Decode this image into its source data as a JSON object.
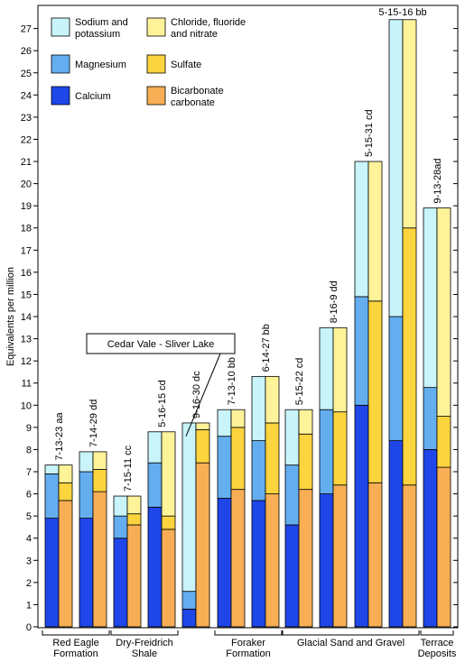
{
  "chart_data": {
    "type": "bar",
    "stacked": true,
    "ylabel": "Equivalents per million",
    "ylim": [
      0,
      28
    ],
    "yticks": [
      0,
      1,
      2,
      3,
      4,
      5,
      6,
      7,
      8,
      9,
      10,
      11,
      12,
      13,
      14,
      15,
      16,
      17,
      18,
      19,
      20,
      21,
      22,
      23,
      24,
      25,
      26,
      27
    ],
    "legend": {
      "placement": "top-left",
      "entries": [
        {
          "label": "Sodium and potassium",
          "lines": [
            "Sodium and",
            "potassium"
          ],
          "color": "#c8f4fa"
        },
        {
          "label": "Chloride, fluoride and nitrate",
          "lines": [
            "Chloride, fluoride",
            "and nitrate"
          ],
          "color": "#fff39a"
        },
        {
          "label": "Magnesium",
          "lines": [
            "Magnesium"
          ],
          "color": "#64aef0"
        },
        {
          "label": "Sulfate",
          "lines": [
            "Sulfate"
          ],
          "color": "#fcd43e"
        },
        {
          "label": "Calcium",
          "lines": [
            "Calcium"
          ],
          "color": "#1f46e8"
        },
        {
          "label": "Bicarbonate carbonate",
          "lines": [
            "Bicarbonate",
            "carbonate"
          ],
          "color": "#f7ae55"
        }
      ]
    },
    "cation_colors": {
      "calcium": "#1f46e8",
      "magnesium": "#64aef0",
      "sodium_potassium": "#c8f4fa"
    },
    "anion_colors": {
      "bicarbonate_carbonate": "#f7ae55",
      "sulfate": "#fcd43e",
      "chloride_fluoride_nitrate": "#fff39a"
    },
    "samples": [
      {
        "label": "7-13-23 aa",
        "cations": {
          "calcium": 4.9,
          "magnesium": 2.0,
          "sodium_potassium": 0.4
        },
        "anions": {
          "bicarbonate_carbonate": 5.7,
          "sulfate": 0.8,
          "chloride_fluoride_nitrate": 0.8
        }
      },
      {
        "label": "7-14-29 dd",
        "cations": {
          "calcium": 4.9,
          "magnesium": 2.1,
          "sodium_potassium": 0.9
        },
        "anions": {
          "bicarbonate_carbonate": 6.1,
          "sulfate": 1.0,
          "chloride_fluoride_nitrate": 0.8
        }
      },
      {
        "label": "7-15-11 cc",
        "cations": {
          "calcium": 4.0,
          "magnesium": 1.0,
          "sodium_potassium": 0.9
        },
        "anions": {
          "bicarbonate_carbonate": 4.6,
          "sulfate": 0.5,
          "chloride_fluoride_nitrate": 0.8
        }
      },
      {
        "label": "5-16-15 cd",
        "cations": {
          "calcium": 5.4,
          "magnesium": 2.0,
          "sodium_potassium": 1.4
        },
        "anions": {
          "bicarbonate_carbonate": 4.4,
          "sulfate": 0.6,
          "chloride_fluoride_nitrate": 3.8
        }
      },
      {
        "label": "9-16-30 dc",
        "cations": {
          "calcium": 0.8,
          "magnesium": 0.8,
          "sodium_potassium": 7.6
        },
        "anions": {
          "bicarbonate_carbonate": 7.4,
          "sulfate": 1.5,
          "chloride_fluoride_nitrate": 0.3
        }
      },
      {
        "label": "7-13-10 bb",
        "cations": {
          "calcium": 5.8,
          "magnesium": 2.8,
          "sodium_potassium": 1.2
        },
        "anions": {
          "bicarbonate_carbonate": 6.2,
          "sulfate": 2.8,
          "chloride_fluoride_nitrate": 0.8
        }
      },
      {
        "label": "6-14-27 bb",
        "cations": {
          "calcium": 5.7,
          "magnesium": 2.7,
          "sodium_potassium": 2.9
        },
        "anions": {
          "bicarbonate_carbonate": 6.0,
          "sulfate": 3.2,
          "chloride_fluoride_nitrate": 2.1
        }
      },
      {
        "label": "5-15-22 cd",
        "cations": {
          "calcium": 4.6,
          "magnesium": 2.7,
          "sodium_potassium": 2.5
        },
        "anions": {
          "bicarbonate_carbonate": 6.2,
          "sulfate": 2.5,
          "chloride_fluoride_nitrate": 1.1
        }
      },
      {
        "label": "8-16-9 dd",
        "cations": {
          "calcium": 6.0,
          "magnesium": 3.8,
          "sodium_potassium": 3.7
        },
        "anions": {
          "bicarbonate_carbonate": 6.4,
          "sulfate": 3.3,
          "chloride_fluoride_nitrate": 3.8
        }
      },
      {
        "label": "5-15-31 cd",
        "cations": {
          "calcium": 10.0,
          "magnesium": 4.9,
          "sodium_potassium": 6.1
        },
        "anions": {
          "bicarbonate_carbonate": 6.5,
          "sulfate": 8.2,
          "chloride_fluoride_nitrate": 6.3
        }
      },
      {
        "label": "5-15-16 bb",
        "cations": {
          "calcium": 8.4,
          "magnesium": 5.6,
          "sodium_potassium": 13.4
        },
        "anions": {
          "bicarbonate_carbonate": 6.4,
          "sulfate": 11.6,
          "chloride_fluoride_nitrate": 9.4
        }
      },
      {
        "label": "9-13-28ad",
        "cations": {
          "calcium": 8.0,
          "magnesium": 2.8,
          "sodium_potassium": 8.1
        },
        "anions": {
          "bicarbonate_carbonate": 7.2,
          "sulfate": 2.3,
          "chloride_fluoride_nitrate": 9.4
        }
      }
    ],
    "groups": [
      {
        "lines": [
          "Red Eagle",
          "Formation"
        ],
        "samples": [
          0,
          1
        ]
      },
      {
        "lines": [
          "Dry-Freidrich",
          "Shale"
        ],
        "samples": [
          2,
          3
        ]
      },
      {
        "lines": [
          "Foraker",
          "Formation"
        ],
        "samples": [
          5,
          6
        ]
      },
      {
        "lines": [
          "Glacial Sand and Gravel"
        ],
        "samples": [
          7,
          8,
          9,
          10
        ]
      },
      {
        "lines": [
          "Terrace",
          "Deposits"
        ],
        "samples": [
          11
        ]
      }
    ],
    "annotations": [
      {
        "text": "Cedar Vale - Sliver Lake",
        "target_sample": 4
      }
    ]
  }
}
